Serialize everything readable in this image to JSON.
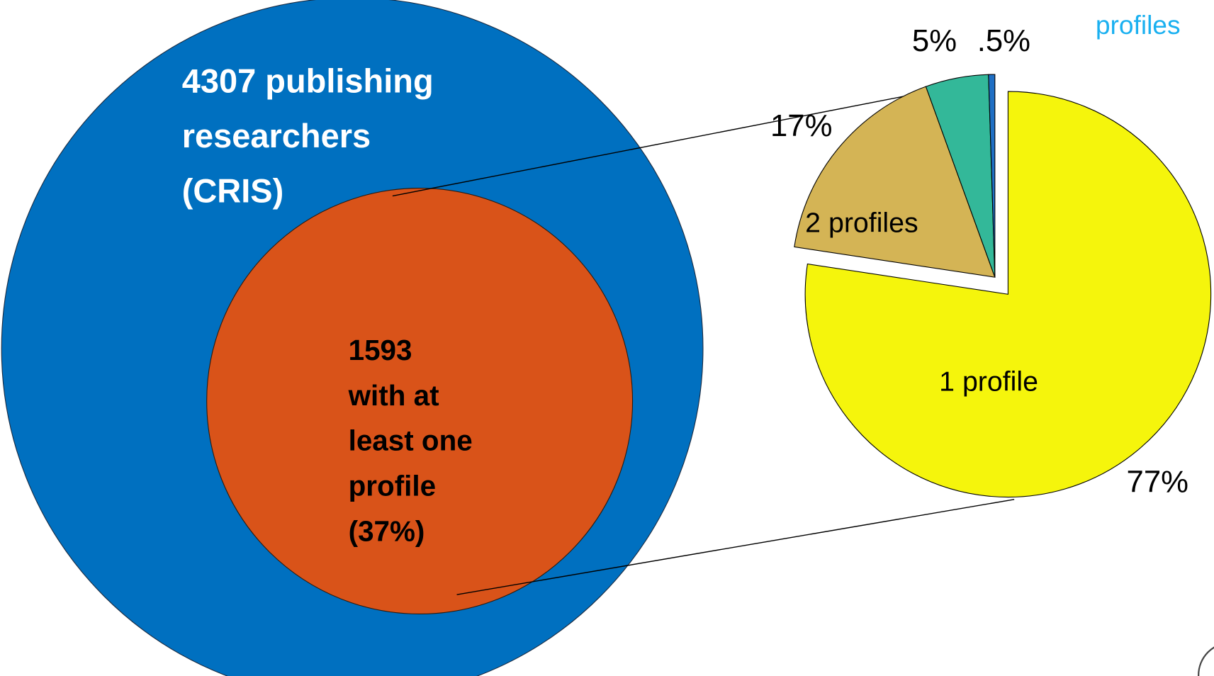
{
  "venn": {
    "outer_label": [
      "4307 publishing",
      "researchers",
      "(CRIS)"
    ],
    "inner_label": [
      "1593",
      "with at",
      "least one",
      "profile",
      "(37%)"
    ]
  },
  "chart_data": {
    "type": "pie",
    "categories": [
      "1 profile",
      "2 profiles",
      null,
      null
    ],
    "values": [
      77,
      17,
      5,
      0.5
    ],
    "value_labels": [
      "77%",
      "17%",
      "5%",
      ".5%"
    ],
    "colors": [
      "#f5f50c",
      "#d4b455",
      "#33b899",
      "#1f6fc4"
    ],
    "annotation": "profiles"
  }
}
